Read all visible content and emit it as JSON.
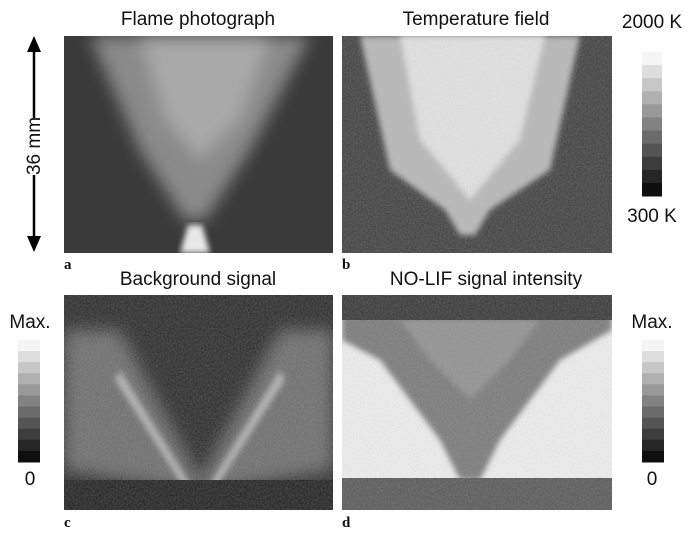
{
  "panels": [
    {
      "label": "a",
      "title": "Flame photograph"
    },
    {
      "label": "b",
      "title": "Temperature field"
    },
    {
      "label": "c",
      "title": "Background signal"
    },
    {
      "label": "d",
      "title": "NO-LIF signal intensity"
    }
  ],
  "scale_bar": "36 mm",
  "temperature_colorbar": {
    "max": "2000 K",
    "min": "300 K"
  },
  "background_colorbar": {
    "max": "Max.",
    "min": "0"
  },
  "lif_colorbar": {
    "max": "Max.",
    "min": "0"
  }
}
